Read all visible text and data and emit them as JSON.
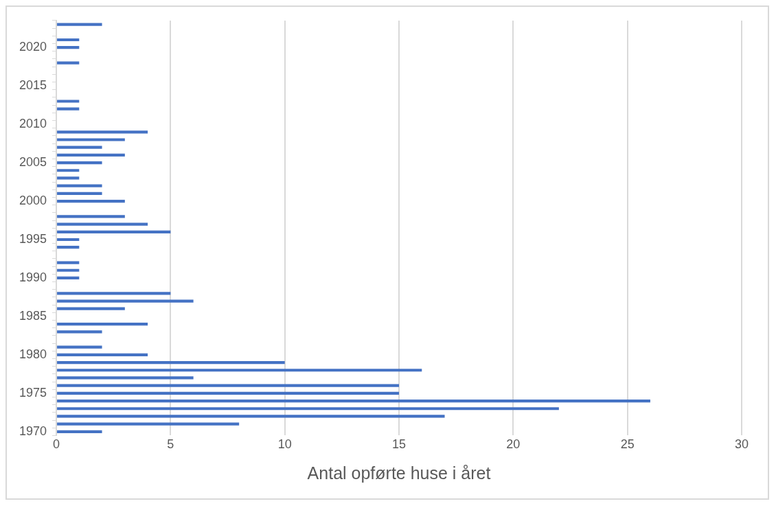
{
  "chart_data": {
    "type": "bar",
    "orientation": "horizontal",
    "xlabel": "Antal opførte huse i året",
    "categories": [
      null,
      null,
      null,
      "2020",
      null,
      null,
      null,
      null,
      "2015",
      null,
      null,
      null,
      null,
      "2010",
      null,
      null,
      null,
      null,
      "2005",
      null,
      null,
      null,
      null,
      "2000",
      null,
      null,
      null,
      null,
      "1995",
      null,
      null,
      null,
      null,
      "1990",
      null,
      null,
      null,
      null,
      "1985",
      null,
      null,
      null,
      null,
      "1980",
      null,
      null,
      null,
      null,
      "1975",
      null,
      null,
      null,
      null,
      "1970"
    ],
    "values": [
      2,
      0,
      1,
      1,
      0,
      1,
      0,
      0,
      0,
      0,
      1,
      1,
      0,
      0,
      4,
      3,
      2,
      3,
      2,
      1,
      1,
      2,
      2,
      3,
      0,
      3,
      4,
      5,
      1,
      1,
      0,
      1,
      1,
      1,
      0,
      5,
      6,
      3,
      0,
      4,
      2,
      0,
      2,
      4,
      10,
      16,
      6,
      15,
      15,
      26,
      22,
      17,
      8,
      2
    ],
    "color": "#4472c4",
    "xlim": [
      0,
      30
    ],
    "xticks": [
      0,
      5,
      10,
      15,
      20,
      25,
      30
    ],
    "grid": "x"
  }
}
